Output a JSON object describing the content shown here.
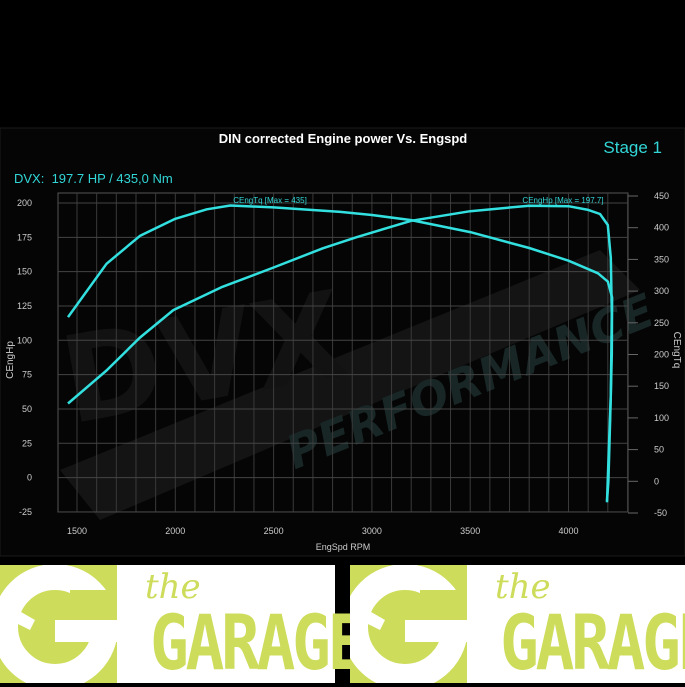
{
  "chart_data": {
    "type": "line",
    "title": "DIN corrected Engine power Vs. Engspd",
    "stage_label": "Stage 1",
    "summary": "DVX:  197.7 HP / 435,0 Nm",
    "xlabel": "EngSpd RPM",
    "ylabel_left": "CEngHp",
    "ylabel_right": "CEngTq",
    "xlim": [
      1400,
      4300
    ],
    "ylim_left": [
      -25,
      205
    ],
    "ylim_right": [
      -50,
      460
    ],
    "x_ticks": [
      1500,
      2000,
      2500,
      3000,
      3500,
      4000
    ],
    "y_ticks_left": [
      200,
      175,
      150,
      125,
      100,
      75,
      50,
      25,
      0,
      -25
    ],
    "y_ticks_right": [
      450,
      400,
      350,
      300,
      250,
      200,
      150,
      100,
      50,
      0,
      -50
    ],
    "grid": true,
    "line_color": "#33e0e0",
    "series": [
      {
        "name": "CEngHp [Max = 197.7]",
        "axis": "left",
        "points": [
          [
            1454,
            54
          ],
          [
            1650,
            78
          ],
          [
            1820,
            102
          ],
          [
            1990,
            122
          ],
          [
            2240,
            139
          ],
          [
            2500,
            153
          ],
          [
            2750,
            167
          ],
          [
            2920,
            175
          ],
          [
            3200,
            187
          ],
          [
            3500,
            194
          ],
          [
            3800,
            198
          ],
          [
            4000,
            197.7
          ],
          [
            4100,
            195
          ],
          [
            4160,
            192
          ],
          [
            4200,
            184
          ],
          [
            4215,
            160
          ],
          [
            4220,
            120
          ],
          [
            4215,
            60
          ],
          [
            4205,
            20
          ],
          [
            4196,
            -18
          ]
        ]
      },
      {
        "name": "CEngTq [Max = 435]",
        "axis": "right",
        "points": [
          [
            1454,
            259
          ],
          [
            1650,
            343
          ],
          [
            1820,
            387
          ],
          [
            2000,
            414
          ],
          [
            2160,
            429
          ],
          [
            2280,
            435
          ],
          [
            2500,
            432
          ],
          [
            2840,
            425
          ],
          [
            3000,
            420
          ],
          [
            3200,
            412
          ],
          [
            3500,
            393
          ],
          [
            3800,
            368
          ],
          [
            4000,
            348
          ],
          [
            4150,
            328
          ],
          [
            4200,
            315
          ],
          [
            4222,
            290
          ],
          [
            4220,
            200
          ],
          [
            4212,
            100
          ],
          [
            4203,
            0
          ],
          [
            4196,
            -31
          ]
        ]
      }
    ]
  },
  "logo": {
    "the": "the",
    "garage": "GARAGE"
  }
}
